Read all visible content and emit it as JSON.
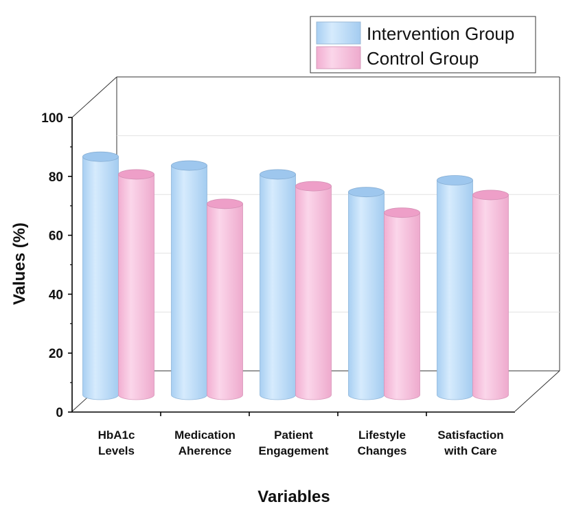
{
  "chart_data": {
    "type": "bar",
    "style": "3d-cylinder",
    "categories": [
      [
        "HbA1c",
        "Levels"
      ],
      [
        "Medication",
        "Aherence"
      ],
      [
        "Patient",
        "Engagement"
      ],
      [
        "Lifestyle",
        "Changes"
      ],
      [
        "Satisfaction",
        "with Care"
      ]
    ],
    "series": [
      {
        "name": "Intervention Group",
        "color": "#b9dcfa",
        "values": [
          89,
          86,
          83,
          77,
          81
        ]
      },
      {
        "name": "Control Group",
        "color": "#f7bfdc",
        "values": [
          83,
          73,
          79,
          70,
          76
        ]
      }
    ],
    "xlabel": "Variables",
    "ylabel": "Values (%)",
    "ylim": [
      0,
      100
    ],
    "yticks": [
      0,
      20,
      40,
      60,
      80,
      100
    ],
    "grid": true,
    "legend": "top-right"
  }
}
